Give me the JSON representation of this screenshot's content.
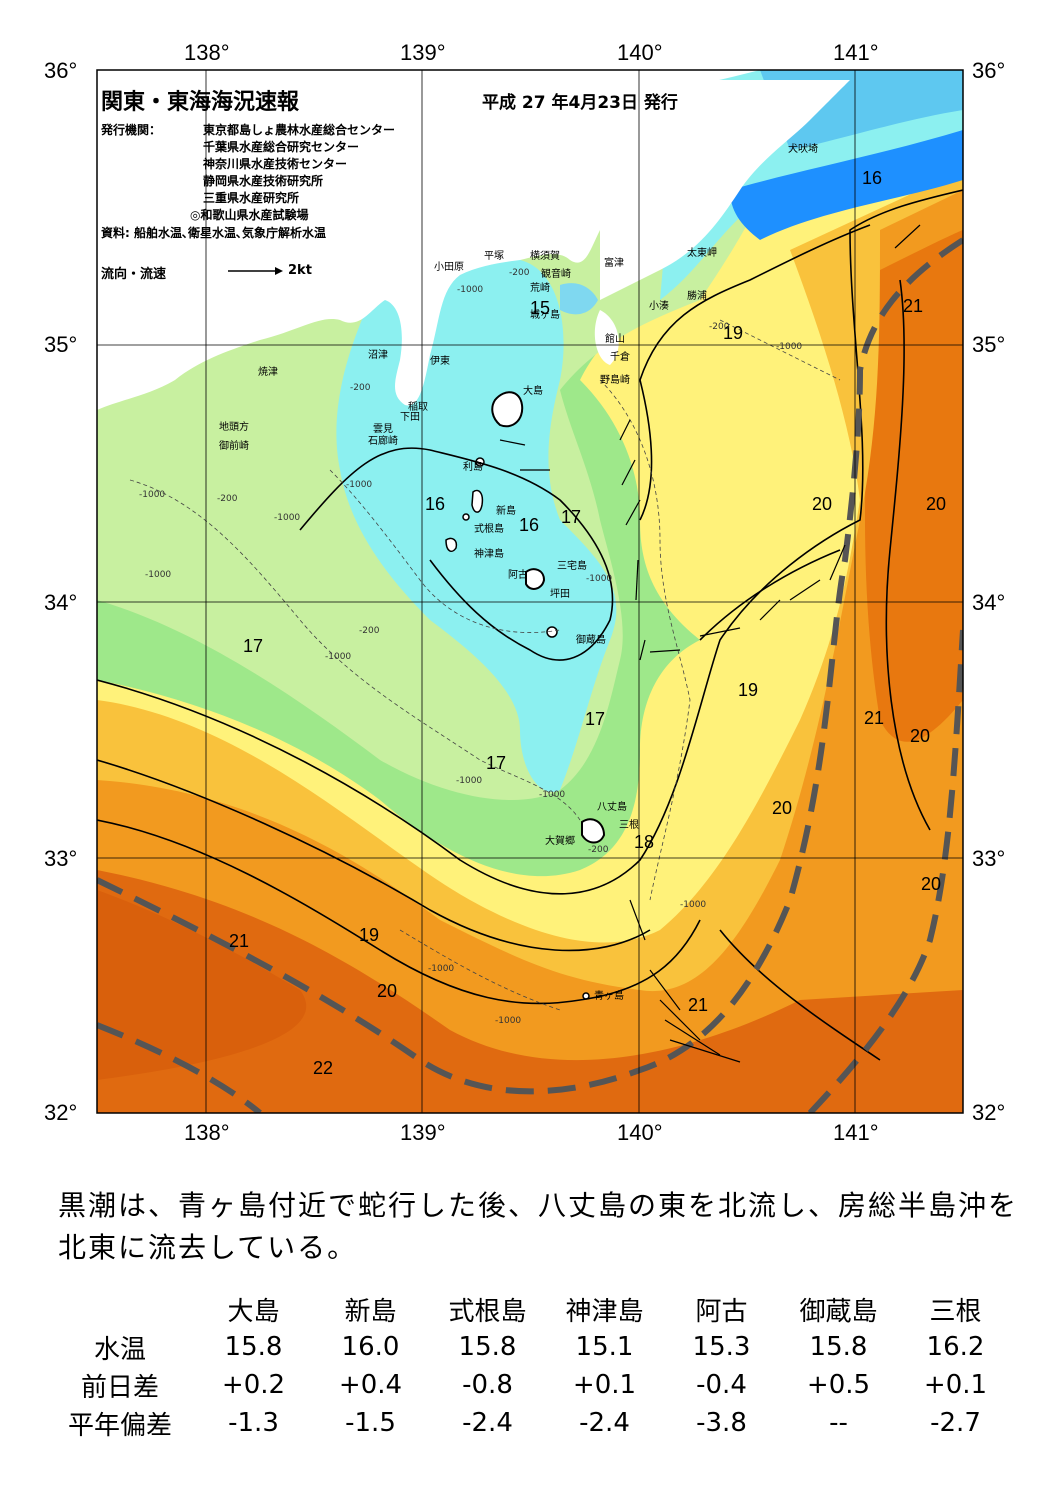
{
  "map": {
    "title": "関東・東海海況速報",
    "issue_date": "平成 27 年4月23日 発行",
    "issuer_label": "発行機関：",
    "issuers": [
      "東京都島しょ農林水産総合センター",
      "千葉県水産総合研究センター",
      "神奈川県水産技術センター",
      "静岡県水産技術研究所",
      "三重県水産研究所",
      "◎和歌山県水産試験場"
    ],
    "source": "資料: 船舶水温､衛星水温､気象庁解析水温",
    "legend_label": "流向・流速",
    "legend_scale": "2kt",
    "lon_labels": [
      "138°",
      "139°",
      "140°",
      "141°"
    ],
    "lat_labels": [
      "36°",
      "35°",
      "34°",
      "33°",
      "32°"
    ],
    "places": [
      "犬吠埼",
      "太東岬",
      "勝浦",
      "小湊",
      "富津",
      "横須賀",
      "観音崎",
      "平塚",
      "小田原",
      "荒崎",
      "城ヶ島",
      "館山",
      "千倉",
      "野島崎",
      "沼津",
      "伊東",
      "焼津",
      "稲取",
      "下田",
      "雲見",
      "石廊崎",
      "地頭方",
      "御前崎",
      "大島",
      "利島",
      "新島",
      "式根島",
      "神津島",
      "三宅島",
      "阿古",
      "坪田",
      "御蔵島",
      "八丈島",
      "三根",
      "大賀郷",
      "青ヶ島"
    ],
    "isotherm_labels": [
      "16",
      "21",
      "19",
      "15",
      "16",
      "16",
      "17",
      "20",
      "20",
      "17",
      "19",
      "21",
      "20",
      "17",
      "17",
      "20",
      "18",
      "20",
      "21",
      "19",
      "20",
      "21",
      "22"
    ],
    "depth_labels": [
      "-200",
      "-1000",
      "-200",
      "-1000",
      "-200",
      "-1000",
      "-1000",
      "-200",
      "-1000",
      "-1000",
      "-1000",
      "-200",
      "-1000",
      "-1000",
      "-1000",
      "-200",
      "-1000",
      "-1000",
      "-1000"
    ]
  },
  "summary": "黒潮は、青ヶ島付近で蛇行した後、八丈島の東を北流し、房総半島沖を北東に流去している。",
  "table": {
    "columns": [
      "大島",
      "新島",
      "式根島",
      "神津島",
      "阿古",
      "御蔵島",
      "三根"
    ],
    "rows": [
      {
        "label": "水温",
        "values": [
          "15.8",
          "16.0",
          "15.8",
          "15.1",
          "15.3",
          "15.8",
          "16.2"
        ]
      },
      {
        "label": "前日差",
        "values": [
          "+0.2",
          "+0.4",
          "-0.8",
          "+0.1",
          "-0.4",
          "+0.5",
          "+0.1"
        ]
      },
      {
        "label": "平年偏差",
        "values": [
          "-1.3",
          "-1.5",
          "-2.4",
          "-2.4",
          "-3.8",
          "--",
          "-2.7"
        ]
      }
    ]
  },
  "colors": {
    "cold_blue": "#1e90ff",
    "cyan": "#8cf0f0",
    "green": "#9ee88a",
    "yellow": "#fff27a",
    "light_orange": "#f9c23c",
    "orange": "#f29a1f",
    "dark_orange": "#e06a10",
    "kuroshio_axis": "#555555"
  }
}
